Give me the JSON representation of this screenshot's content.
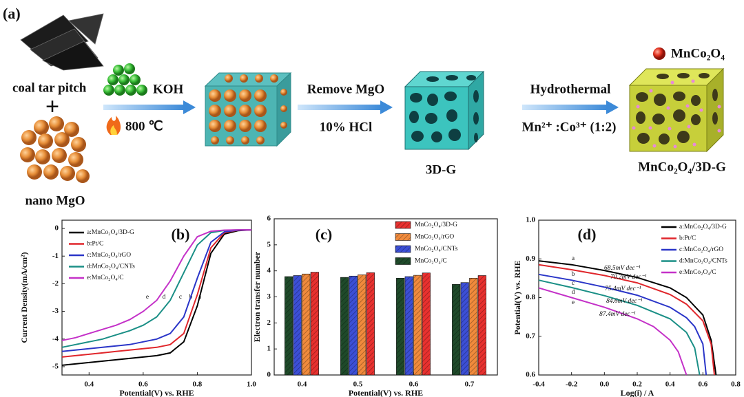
{
  "panel_a": {
    "label": "(a)",
    "precursor": "coal tar pitch",
    "plus": "+",
    "template": "nano MgO",
    "reagent": "KOH",
    "temperature": "800 ℃",
    "step2": "Remove MgO",
    "step2_reagent": "10% HCl",
    "product1": "3D-G",
    "step3": "Hydrothermal",
    "step3_ratio": "Mn²⁺ :Co³⁺ (1:2)",
    "legend": "MnCo₂O₄",
    "product2": "MnCo₂O₄/3D-G"
  },
  "chart_data": [
    {
      "type": "line",
      "panel": "(b)",
      "x_label": "Potential(V) vs. RHE",
      "y_label": "Current Density(mA/cm²)",
      "x": [
        0.3,
        0.35,
        0.4,
        0.45,
        0.5,
        0.55,
        0.6,
        0.65,
        0.7,
        0.75,
        0.8,
        0.85,
        0.9,
        0.95,
        1.0
      ],
      "xlim": [
        0.3,
        1.0
      ],
      "xticks": [
        0.4,
        0.6,
        0.8,
        {
          "value": 1,
          "label": "1.0"
        }
      ],
      "ylim": [
        -5.3,
        0.3
      ],
      "yticks": [
        0,
        -1,
        -2,
        -3,
        -4,
        -5
      ],
      "series": [
        {
          "name": "a:MnCo₂O₄/3D-G",
          "curve_label": "a",
          "color": "#000000",
          "values": [
            -4.95,
            -4.9,
            -4.85,
            -4.8,
            -4.75,
            -4.7,
            -4.65,
            -4.6,
            -4.5,
            -4.1,
            -2.8,
            -0.9,
            -0.2,
            -0.08,
            -0.05
          ]
        },
        {
          "name": "b:Pt/C",
          "curve_label": "b",
          "color": "#e0262b",
          "values": [
            -4.65,
            -4.6,
            -4.55,
            -4.5,
            -4.45,
            -4.4,
            -4.35,
            -4.3,
            -4.2,
            -3.8,
            -2.4,
            -0.7,
            -0.15,
            -0.06,
            -0.05
          ]
        },
        {
          "name": "c:MnCo₂O₄/rGO",
          "curve_label": "c",
          "color": "#2a35c8",
          "values": [
            -4.45,
            -4.4,
            -4.35,
            -4.3,
            -4.25,
            -4.2,
            -4.1,
            -4.0,
            -3.8,
            -3.2,
            -1.8,
            -0.5,
            -0.12,
            -0.06,
            -0.05
          ]
        },
        {
          "name": "d:MnCo₂O₄/CNTs",
          "curve_label": "d",
          "color": "#1a8f86",
          "values": [
            -4.3,
            -4.2,
            -4.1,
            -4.0,
            -3.85,
            -3.7,
            -3.5,
            -3.2,
            -2.6,
            -1.6,
            -0.6,
            -0.15,
            -0.07,
            -0.05,
            -0.05
          ]
        },
        {
          "name": "e:MnCo₂O₄/C",
          "curve_label": "e",
          "color": "#c431c8",
          "values": [
            -4.05,
            -3.95,
            -3.8,
            -3.65,
            -3.5,
            -3.3,
            -3.0,
            -2.6,
            -1.9,
            -1.0,
            -0.3,
            -0.1,
            -0.06,
            -0.05,
            -0.05
          ]
        }
      ]
    },
    {
      "type": "bar",
      "panel": "(c)",
      "x_label": "Potential(V) vs. RHE",
      "y_label": "Electron transfer number",
      "categories": [
        "0.4",
        "0.5",
        "0.6",
        "0.7"
      ],
      "ylim": [
        0,
        6
      ],
      "yticks": [
        0,
        1,
        2,
        3,
        4,
        5,
        6
      ],
      "series": [
        {
          "name": "MnCo₂O₄/3D-G",
          "color": "#e8312f",
          "values": [
            3.95,
            3.93,
            3.92,
            3.82
          ]
        },
        {
          "name": "MnCo₂O₄/rGO",
          "color": "#f08a3c",
          "values": [
            3.88,
            3.85,
            3.83,
            3.72
          ]
        },
        {
          "name": "MnCo₂O₄/CNTs",
          "color": "#3c4fd6",
          "values": [
            3.82,
            3.8,
            3.78,
            3.55
          ]
        },
        {
          "name": "MnCo₂O₄/C",
          "color": "#1f4a2a",
          "values": [
            3.78,
            3.75,
            3.72,
            3.48
          ]
        }
      ]
    },
    {
      "type": "line",
      "panel": "(d)",
      "x_label": "Log(i) / A",
      "y_label": "Potential(V) vs. RHE",
      "xlim": [
        -0.4,
        0.8
      ],
      "xticks": [
        -0.4,
        -0.2,
        {
          "value": 0,
          "label": "0.0"
        },
        0.2,
        0.4,
        0.6,
        0.8
      ],
      "ylim": [
        0.6,
        1.0
      ],
      "yticks": [
        0.6,
        0.7,
        0.8,
        0.9,
        {
          "value": 1,
          "label": "1.0"
        }
      ],
      "series": [
        {
          "name": "a:MnCo₂O₄/3D-G",
          "curve_label": "a",
          "slope_label": "68.5mV dec⁻¹",
          "color": "#000000",
          "x": [
            -0.4,
            -0.2,
            0,
            0.2,
            0.4,
            0.5,
            0.6,
            0.65,
            0.68
          ],
          "values": [
            0.895,
            0.885,
            0.87,
            0.852,
            0.825,
            0.8,
            0.755,
            0.69,
            0.6
          ]
        },
        {
          "name": "b:Pt/C",
          "curve_label": "b",
          "slope_label": "70.2mV dec⁻¹",
          "color": "#e0262b",
          "x": [
            -0.4,
            -0.2,
            0,
            0.2,
            0.4,
            0.5,
            0.6,
            0.65,
            0.67
          ],
          "values": [
            0.885,
            0.872,
            0.857,
            0.838,
            0.808,
            0.783,
            0.74,
            0.68,
            0.6
          ]
        },
        {
          "name": "c:MnCo₂O₄/rGO",
          "curve_label": "c",
          "slope_label": "75.4mV dec⁻¹",
          "color": "#2a35c8",
          "x": [
            -0.4,
            -0.2,
            0,
            0.2,
            0.4,
            0.5,
            0.55,
            0.6,
            0.62
          ],
          "values": [
            0.86,
            0.845,
            0.827,
            0.806,
            0.775,
            0.748,
            0.725,
            0.68,
            0.6
          ]
        },
        {
          "name": "d:MnCo₂O₄/CNTs",
          "curve_label": "d",
          "slope_label": "84.6mV dec⁻¹",
          "color": "#1a8f86",
          "x": [
            -0.4,
            -0.2,
            0,
            0.2,
            0.4,
            0.5,
            0.55,
            0.58
          ],
          "values": [
            0.845,
            0.826,
            0.805,
            0.78,
            0.745,
            0.71,
            0.67,
            0.6
          ]
        },
        {
          "name": "e:MnCo₂O₄/C",
          "curve_label": "e",
          "slope_label": "87.4mV dec⁻¹",
          "color": "#c431c8",
          "x": [
            -0.4,
            -0.2,
            0,
            0.2,
            0.3,
            0.4,
            0.45,
            0.5
          ],
          "values": [
            0.825,
            0.8,
            0.775,
            0.745,
            0.725,
            0.69,
            0.66,
            0.6
          ]
        }
      ]
    }
  ]
}
